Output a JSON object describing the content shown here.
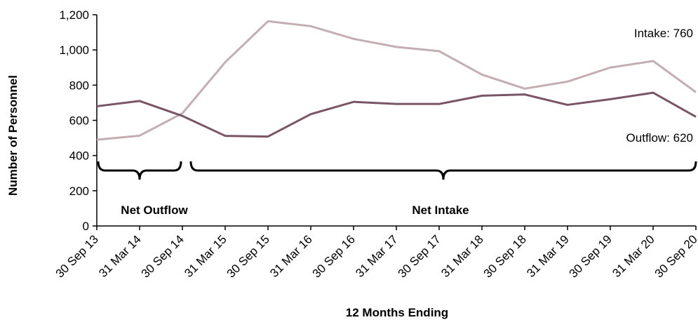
{
  "chart_data": {
    "type": "line",
    "categories": [
      "30 Sep 13",
      "31 Mar 14",
      "30 Sep 14",
      "31 Mar 15",
      "30 Sep 15",
      "31 Mar 16",
      "30 Sep 16",
      "31 Mar 17",
      "30 Sep 17",
      "31 Mar 18",
      "30 Sep 18",
      "31 Mar 19",
      "30 Sep 19",
      "31 Mar 20",
      "30 Sep 20"
    ],
    "series": [
      {
        "name": "Intake",
        "color": "#c2aeb3",
        "values": [
          490,
          513,
          640,
          930,
          1163,
          1135,
          1063,
          1017,
          993,
          860,
          780,
          820,
          900,
          937,
          760
        ]
      },
      {
        "name": "Outflow",
        "color": "#7a5566",
        "values": [
          680,
          710,
          625,
          512,
          508,
          635,
          705,
          693,
          693,
          740,
          747,
          688,
          720,
          757,
          620
        ]
      }
    ],
    "series_labels": [
      {
        "text": "Intake: 760"
      },
      {
        "text": "Outflow: 620"
      }
    ],
    "xlabel": "12 Months Ending",
    "ylabel": "Number of Personnel",
    "ylim": [
      0,
      1200
    ],
    "yticks": [
      0,
      200,
      400,
      600,
      800,
      1000,
      1200
    ],
    "ytick_labels": [
      "0",
      "200",
      "400",
      "600",
      "800",
      "1,000",
      "1,200"
    ],
    "grid": false,
    "annotations": [
      {
        "text": "Net Outflow",
        "from_index": 0,
        "to_index": 2
      },
      {
        "text": "Net Intake",
        "from_index": 2,
        "to_index": 14
      }
    ]
  }
}
